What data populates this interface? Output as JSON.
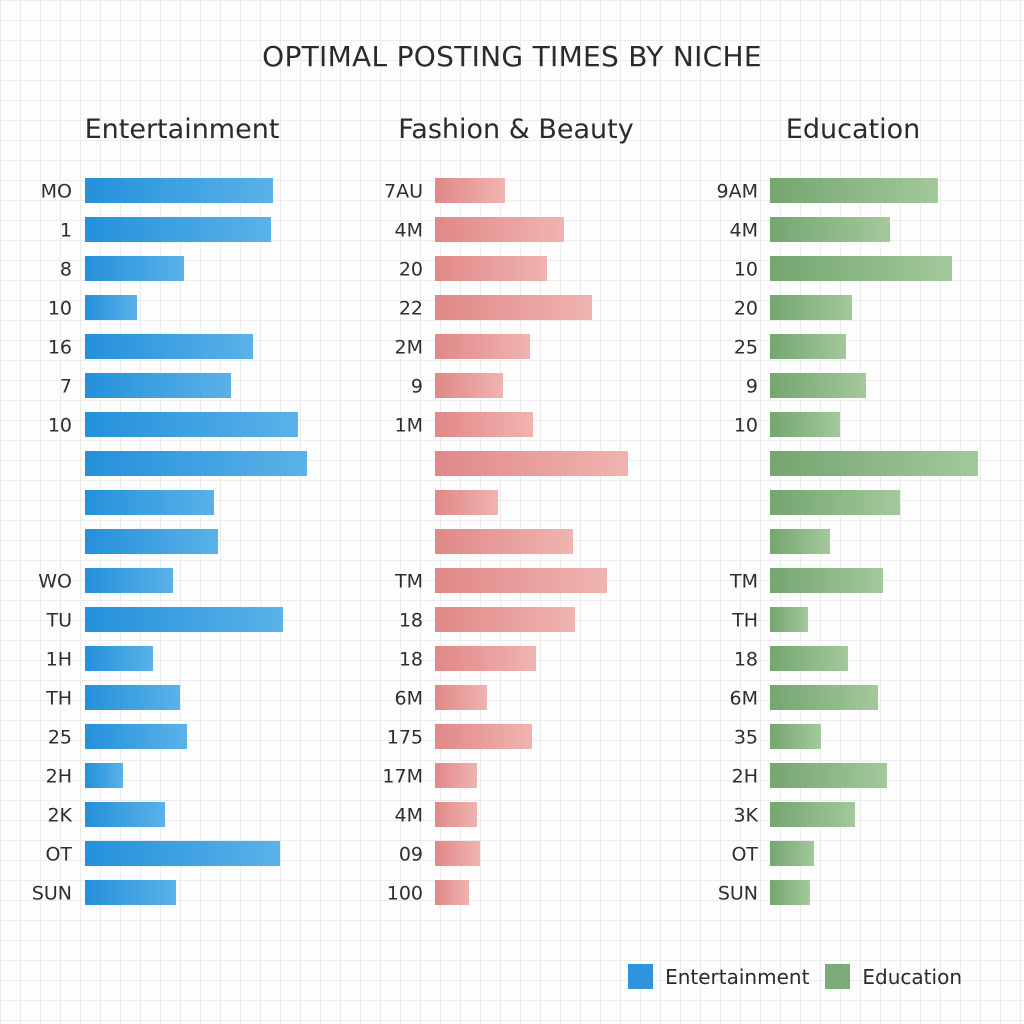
{
  "chart_data": {
    "title": "OPTIMAL POSTING TIMES BY NICHE",
    "type": "bar",
    "orientation": "horizontal",
    "grid": true,
    "legend": {
      "position": "bottom-right",
      "entries": [
        {
          "label": "Entertainment",
          "color": "#2f94dc"
        },
        {
          "label": "Education",
          "color": "#7bab76"
        }
      ]
    },
    "panels": [
      {
        "name": "Entertainment",
        "color_start": "#2490db",
        "color_end": "#5ab2e8",
        "categories": [
          "MO",
          "1",
          "8",
          "10",
          "16",
          "7",
          "10",
          "",
          "",
          "",
          "WO",
          "TU",
          "1H",
          "TH",
          "25",
          "2H",
          "2K",
          "OT",
          "SUN"
        ],
        "values": [
          188,
          186,
          99,
          52,
          168,
          146,
          213,
          222,
          129,
          133,
          88,
          198,
          68,
          95,
          102,
          38,
          80,
          195,
          91
        ]
      },
      {
        "name": "Fashion & Beauty",
        "color_start": "#e08888",
        "color_end": "#f0b4b0",
        "categories": [
          "7AU",
          "4M",
          "20",
          "22",
          "2M",
          "9",
          "1M",
          "",
          "",
          "",
          "TM",
          "18",
          "18",
          "6M",
          "175",
          "17M",
          "4M",
          "09",
          "100"
        ],
        "values": [
          70,
          129,
          112,
          157,
          95,
          68,
          98,
          193,
          63,
          138,
          172,
          140,
          101,
          52,
          97,
          42,
          42,
          45,
          34
        ]
      },
      {
        "name": "Education",
        "color_start": "#74a66f",
        "color_end": "#a3c89c",
        "categories": [
          "9AM",
          "4M",
          "10",
          "20",
          "25",
          "9",
          "10",
          "",
          "",
          "",
          "TM",
          "TH",
          "18",
          "6M",
          "35",
          "2H",
          "3K",
          "OT",
          "SUN"
        ],
        "values": [
          168,
          120,
          182,
          82,
          76,
          96,
          70,
          208,
          130,
          60,
          113,
          38,
          78,
          108,
          51,
          117,
          85,
          44,
          40
        ]
      }
    ]
  }
}
